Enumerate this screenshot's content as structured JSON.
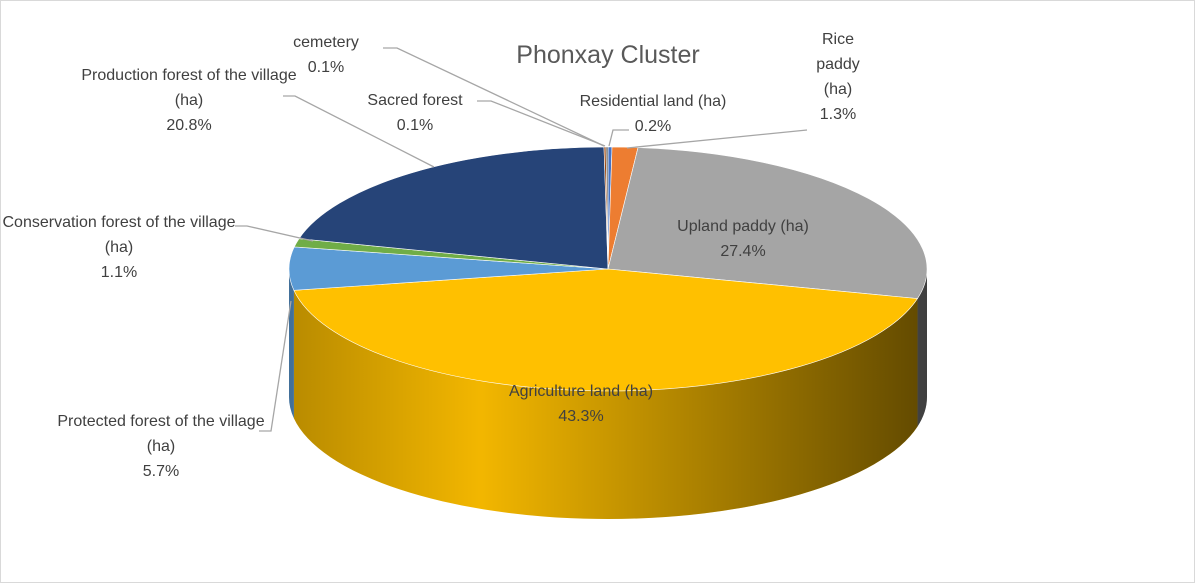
{
  "chart_data": {
    "type": "pie",
    "title": "Phonxay Cluster",
    "categories": [
      "Residential land (ha)",
      "Rice paddy (ha)",
      "Upland paddy (ha)",
      "Agriculture land (ha)",
      "Protected forest of the village (ha)",
      "Conservation forest of the village (ha)",
      "Production forest of the village (ha)",
      "Sacred forest",
      "cemetery"
    ],
    "values": [
      0.2,
      1.3,
      27.4,
      43.3,
      5.7,
      1.1,
      20.8,
      0.1,
      0.1
    ],
    "value_labels": [
      "0.2%",
      "1.3%",
      "27.4%",
      "43.3%",
      "5.7%",
      "1.1%",
      "20.8%",
      "0.1%",
      "0.1%"
    ],
    "colors": [
      "#4472c4",
      "#ed7d31",
      "#a5a5a5",
      "#ffc000",
      "#5b9bd5",
      "#70ad47",
      "#264478",
      "#9e480e",
      "#636363"
    ]
  }
}
